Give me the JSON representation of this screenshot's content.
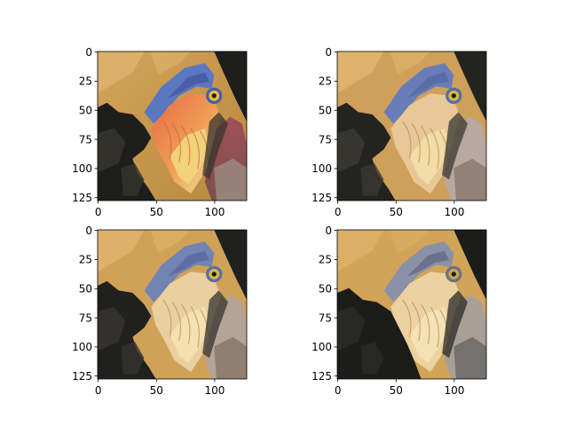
{
  "chart_data": [
    {
      "type": "image",
      "panel": "top-left",
      "content": "original bird image (hornbill), full color",
      "xlim": [
        -0.5,
        127.5
      ],
      "ylim": [
        127.5,
        -0.5
      ],
      "xticks": [
        0,
        50,
        100
      ],
      "yticks": [
        0,
        25,
        50,
        75,
        100,
        125
      ],
      "xtick_labels": [
        "0",
        "50",
        "100"
      ],
      "ytick_labels": [
        "0",
        "25",
        "50",
        "75",
        "100",
        "125"
      ]
    },
    {
      "type": "image",
      "panel": "top-right",
      "content": "bird image quantized, many colors",
      "xlim": [
        -0.5,
        127.5
      ],
      "ylim": [
        127.5,
        -0.5
      ],
      "xticks": [
        0,
        50,
        100
      ],
      "yticks": [
        0,
        25,
        50,
        75,
        100,
        125
      ],
      "xtick_labels": [
        "0",
        "50",
        "100"
      ],
      "ytick_labels": [
        "0",
        "25",
        "50",
        "75",
        "100",
        "125"
      ]
    },
    {
      "type": "image",
      "panel": "bottom-left",
      "content": "bird image quantized, medium number of colors",
      "xlim": [
        -0.5,
        127.5
      ],
      "ylim": [
        127.5,
        -0.5
      ],
      "xticks": [
        0,
        50,
        100
      ],
      "yticks": [
        0,
        25,
        50,
        75,
        100,
        125
      ],
      "xtick_labels": [
        "0",
        "50",
        "100"
      ],
      "ytick_labels": [
        "0",
        "25",
        "50",
        "75",
        "100",
        "125"
      ]
    },
    {
      "type": "image",
      "panel": "bottom-right",
      "content": "bird image quantized, few colors",
      "xlim": [
        -0.5,
        127.5
      ],
      "ylim": [
        127.5,
        -0.5
      ],
      "xticks": [
        0,
        50,
        100
      ],
      "yticks": [
        0,
        25,
        50,
        75,
        100,
        125
      ],
      "xtick_labels": [
        "0",
        "50",
        "100"
      ],
      "ytick_labels": [
        "0",
        "25",
        "50",
        "75",
        "100",
        "125"
      ]
    }
  ],
  "palette": {
    "background": "#ffffff",
    "axis": "#000000",
    "feather_dark": "#1e1e1c",
    "feather_mid": "#3a3a34",
    "plumage_tan": "#c99a50",
    "plumage_light": "#dcb06a",
    "beak_cream": "#f2dca0",
    "beak_yellow": "#eee49a",
    "beak_orange": "#e88a4a",
    "casque_blue": "#5a78c0",
    "eye_yellow": "#e8c040",
    "wattle_red": "#8a4c52",
    "wattle_grey": "#a89898"
  }
}
